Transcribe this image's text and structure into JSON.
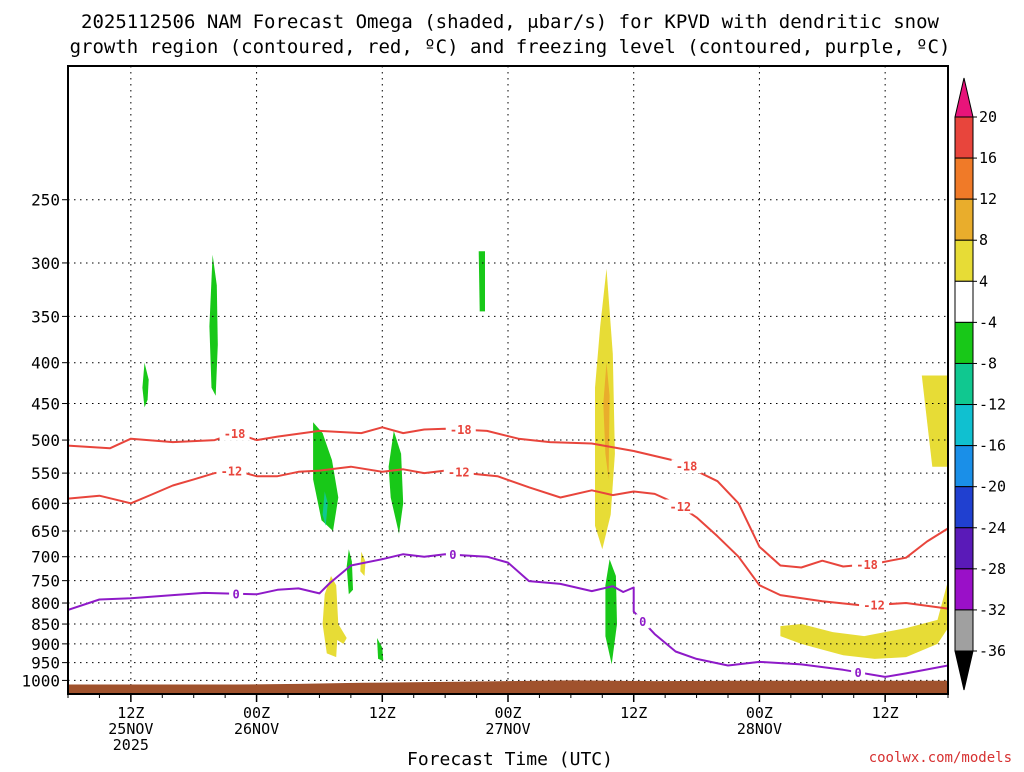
{
  "chart_data": {
    "type": "heatmap",
    "title_lines": [
      "2025112506 NAM Forecast Omega (shaded, μbar/s) for KPVD with dendritic snow",
      "growth region (contoured, red, ºC) and freezing level (contoured, purple, ºC)"
    ],
    "xlabel": "Forecast Time (UTC)",
    "credit": "coolwx.com/models",
    "y_axis": {
      "unit": "hPa",
      "reversed": true,
      "ticks": [
        250,
        300,
        350,
        400,
        450,
        500,
        550,
        600,
        650,
        700,
        750,
        800,
        850,
        900,
        950,
        1000
      ]
    },
    "x_axis": {
      "unit": "forecast hour",
      "range": [
        0,
        84
      ],
      "ticks": [
        {
          "hour": 6,
          "lines": [
            "12Z",
            "25NOV",
            "2025"
          ]
        },
        {
          "hour": 18,
          "lines": [
            "00Z",
            "26NOV"
          ]
        },
        {
          "hour": 30,
          "lines": [
            "12Z"
          ]
        },
        {
          "hour": 42,
          "lines": [
            "00Z",
            "27NOV"
          ]
        },
        {
          "hour": 54,
          "lines": [
            "12Z"
          ]
        },
        {
          "hour": 66,
          "lines": [
            "00Z",
            "28NOV"
          ]
        },
        {
          "hour": 78,
          "lines": [
            "12Z"
          ]
        }
      ]
    },
    "grid": true,
    "colorbar": {
      "placement": "right",
      "labels": [
        20,
        16,
        12,
        8,
        4,
        -4,
        -8,
        -12,
        -16,
        -20,
        -24,
        -28,
        -32,
        -36
      ],
      "colors": [
        "#e8147a",
        "#e8453c",
        "#f07a28",
        "#e9ad2c",
        "#e7dc36",
        "#ffffff",
        "#18c818",
        "#10c890",
        "#10c0d0",
        "#1a8fe8",
        "#2040d0",
        "#5a1ab8",
        "#9a10c8",
        "#a0a0a0",
        "#000000"
      ]
    },
    "contours": [
      {
        "color": "#e8453c",
        "label": "-18",
        "points": [
          [
            0,
            508
          ],
          [
            4,
            512
          ],
          [
            6,
            498
          ],
          [
            10,
            503
          ],
          [
            14,
            500
          ],
          [
            16,
            490
          ],
          [
            18,
            500
          ],
          [
            20,
            495
          ],
          [
            24,
            487
          ],
          [
            28,
            490
          ],
          [
            30,
            482
          ],
          [
            32,
            490
          ],
          [
            34,
            485
          ],
          [
            36,
            484
          ],
          [
            40,
            487
          ],
          [
            43,
            498
          ],
          [
            46,
            503
          ],
          [
            50,
            505
          ],
          [
            54,
            516
          ],
          [
            58,
            531
          ],
          [
            62,
            563
          ],
          [
            64,
            600
          ],
          [
            66,
            680
          ],
          [
            68,
            718
          ],
          [
            70,
            722
          ],
          [
            72,
            708
          ],
          [
            74,
            720
          ],
          [
            77,
            714
          ],
          [
            80,
            702
          ],
          [
            82,
            670
          ],
          [
            84,
            645
          ]
        ]
      },
      {
        "color": "#e8453c",
        "label": "-12",
        "points": [
          [
            0,
            592
          ],
          [
            3,
            587
          ],
          [
            6,
            600
          ],
          [
            8,
            585
          ],
          [
            10,
            570
          ],
          [
            12,
            560
          ],
          [
            14,
            550
          ],
          [
            16,
            546
          ],
          [
            18,
            555
          ],
          [
            20,
            555
          ],
          [
            22,
            548
          ],
          [
            24,
            546
          ],
          [
            27,
            540
          ],
          [
            30,
            548
          ],
          [
            32,
            544
          ],
          [
            34,
            550
          ],
          [
            36,
            546
          ],
          [
            38,
            550
          ],
          [
            41,
            555
          ],
          [
            44,
            573
          ],
          [
            47,
            590
          ],
          [
            50,
            578
          ],
          [
            52,
            586
          ],
          [
            54,
            580
          ],
          [
            56,
            584
          ],
          [
            58,
            600
          ],
          [
            60,
            625
          ],
          [
            62,
            660
          ],
          [
            64,
            700
          ],
          [
            66,
            760
          ],
          [
            68,
            782
          ],
          [
            72,
            796
          ],
          [
            76,
            806
          ],
          [
            80,
            800
          ],
          [
            84,
            813
          ]
        ]
      },
      {
        "color": "#8e1ac8",
        "label": "0",
        "points": [
          [
            0,
            816
          ],
          [
            3,
            792
          ],
          [
            6,
            789
          ],
          [
            10,
            782
          ],
          [
            13,
            777
          ],
          [
            16,
            779
          ],
          [
            18,
            780
          ],
          [
            20,
            770
          ],
          [
            22,
            767
          ],
          [
            24,
            778
          ],
          [
            25,
            755
          ],
          [
            27,
            718
          ],
          [
            30,
            705
          ],
          [
            32,
            695
          ],
          [
            34,
            700
          ],
          [
            36,
            695
          ],
          [
            40,
            700
          ],
          [
            42,
            712
          ],
          [
            44,
            751
          ],
          [
            47,
            757
          ],
          [
            50,
            773
          ],
          [
            52,
            762
          ],
          [
            53,
            775
          ],
          [
            54,
            765
          ],
          [
            54,
            820
          ],
          [
            56,
            875
          ],
          [
            58,
            920
          ],
          [
            60,
            940
          ],
          [
            63,
            958
          ],
          [
            66,
            948
          ],
          [
            70,
            955
          ],
          [
            74,
            970
          ],
          [
            78,
            990
          ],
          [
            80,
            980
          ],
          [
            84,
            958
          ]
        ]
      }
    ],
    "shaded_regions": [
      {
        "value": -6,
        "color": "#18c818",
        "points": [
          [
            7.3,
            400
          ],
          [
            7.7,
            420
          ],
          [
            7.6,
            445
          ],
          [
            7.3,
            455
          ],
          [
            7.1,
            430
          ]
        ]
      },
      {
        "value": -6,
        "color": "#18c818",
        "points": [
          [
            13.8,
            293
          ],
          [
            14.2,
            320
          ],
          [
            14.3,
            380
          ],
          [
            14.1,
            440
          ],
          [
            13.7,
            430
          ],
          [
            13.5,
            360
          ]
        ]
      },
      {
        "value": -6,
        "color": "#18c818",
        "points": [
          [
            23.4,
            475
          ],
          [
            24.3,
            490
          ],
          [
            25.2,
            530
          ],
          [
            25.8,
            590
          ],
          [
            25.3,
            650
          ],
          [
            24.2,
            630
          ],
          [
            23.4,
            560
          ]
        ]
      },
      {
        "value": -10,
        "color": "#10c890",
        "points": [
          [
            24.5,
            580
          ],
          [
            24.8,
            600
          ],
          [
            24.6,
            640
          ],
          [
            24.3,
            620
          ]
        ]
      },
      {
        "value": -6,
        "color": "#18c818",
        "points": [
          [
            26.8,
            685
          ],
          [
            27.1,
            710
          ],
          [
            27.2,
            770
          ],
          [
            26.8,
            780
          ],
          [
            26.6,
            720
          ]
        ]
      },
      {
        "value": -6,
        "color": "#18c818",
        "points": [
          [
            29.5,
            885
          ],
          [
            30.0,
            910
          ],
          [
            30.1,
            945
          ],
          [
            29.6,
            940
          ]
        ]
      },
      {
        "value": -6,
        "color": "#18c818",
        "points": [
          [
            31.1,
            487
          ],
          [
            31.8,
            520
          ],
          [
            32.0,
            600
          ],
          [
            31.6,
            655
          ],
          [
            30.8,
            590
          ],
          [
            30.6,
            540
          ]
        ]
      },
      {
        "value": -6,
        "color": "#18c818",
        "points": [
          [
            39.2,
            290
          ],
          [
            39.8,
            290
          ],
          [
            39.8,
            345
          ],
          [
            39.3,
            345
          ]
        ]
      },
      {
        "value": -6,
        "color": "#18c818",
        "points": [
          [
            51.7,
            705
          ],
          [
            52.3,
            740
          ],
          [
            52.4,
            850
          ],
          [
            51.9,
            955
          ],
          [
            51.3,
            880
          ],
          [
            51.3,
            760
          ]
        ]
      },
      {
        "value": 6,
        "color": "#e7dc36",
        "points": [
          [
            25.1,
            740
          ],
          [
            25.6,
            760
          ],
          [
            25.8,
            850
          ],
          [
            26.6,
            885
          ],
          [
            26.3,
            900
          ],
          [
            25.7,
            890
          ],
          [
            25.6,
            935
          ],
          [
            24.7,
            925
          ],
          [
            24.3,
            850
          ],
          [
            24.5,
            780
          ]
        ]
      },
      {
        "value": 6,
        "color": "#e7dc36",
        "points": [
          [
            28.0,
            690
          ],
          [
            28.4,
            710
          ],
          [
            28.3,
            740
          ],
          [
            27.9,
            730
          ]
        ]
      },
      {
        "value": 6,
        "color": "#e7dc36",
        "points": [
          [
            51.4,
            305
          ],
          [
            52.0,
            390
          ],
          [
            52.2,
            520
          ],
          [
            51.8,
            620
          ],
          [
            51.0,
            685
          ],
          [
            50.3,
            640
          ],
          [
            50.3,
            430
          ],
          [
            50.8,
            360
          ]
        ]
      },
      {
        "value": 10,
        "color": "#e9ad2c",
        "points": [
          [
            51.4,
            400
          ],
          [
            51.7,
            440
          ],
          [
            51.6,
            560
          ],
          [
            51.3,
            520
          ],
          [
            51.1,
            450
          ]
        ]
      },
      {
        "value": 6,
        "color": "#e7dc36",
        "points": [
          [
            68,
            855
          ],
          [
            70,
            850
          ],
          [
            73,
            870
          ],
          [
            76,
            880
          ],
          [
            80,
            860
          ],
          [
            83,
            840
          ],
          [
            84,
            750
          ],
          [
            84,
            860
          ],
          [
            83,
            900
          ],
          [
            80,
            935
          ],
          [
            77,
            940
          ],
          [
            74,
            930
          ],
          [
            72,
            915
          ],
          [
            70,
            900
          ],
          [
            68,
            880
          ]
        ]
      },
      {
        "value": 6,
        "color": "#e7dc36",
        "points": [
          [
            81.5,
            415
          ],
          [
            84,
            415
          ],
          [
            84,
            540
          ],
          [
            82.5,
            540
          ],
          [
            81.8,
            450
          ]
        ]
      }
    ],
    "terrain": {
      "color": "#a0522d",
      "pressure_top": [
        [
          0,
          1012
        ],
        [
          16,
          1012
        ],
        [
          22,
          1010
        ],
        [
          28,
          1007
        ],
        [
          40,
          1003
        ],
        [
          48,
          1000
        ],
        [
          56,
          1002
        ],
        [
          64,
          1001
        ],
        [
          84,
          1001
        ]
      ]
    }
  }
}
